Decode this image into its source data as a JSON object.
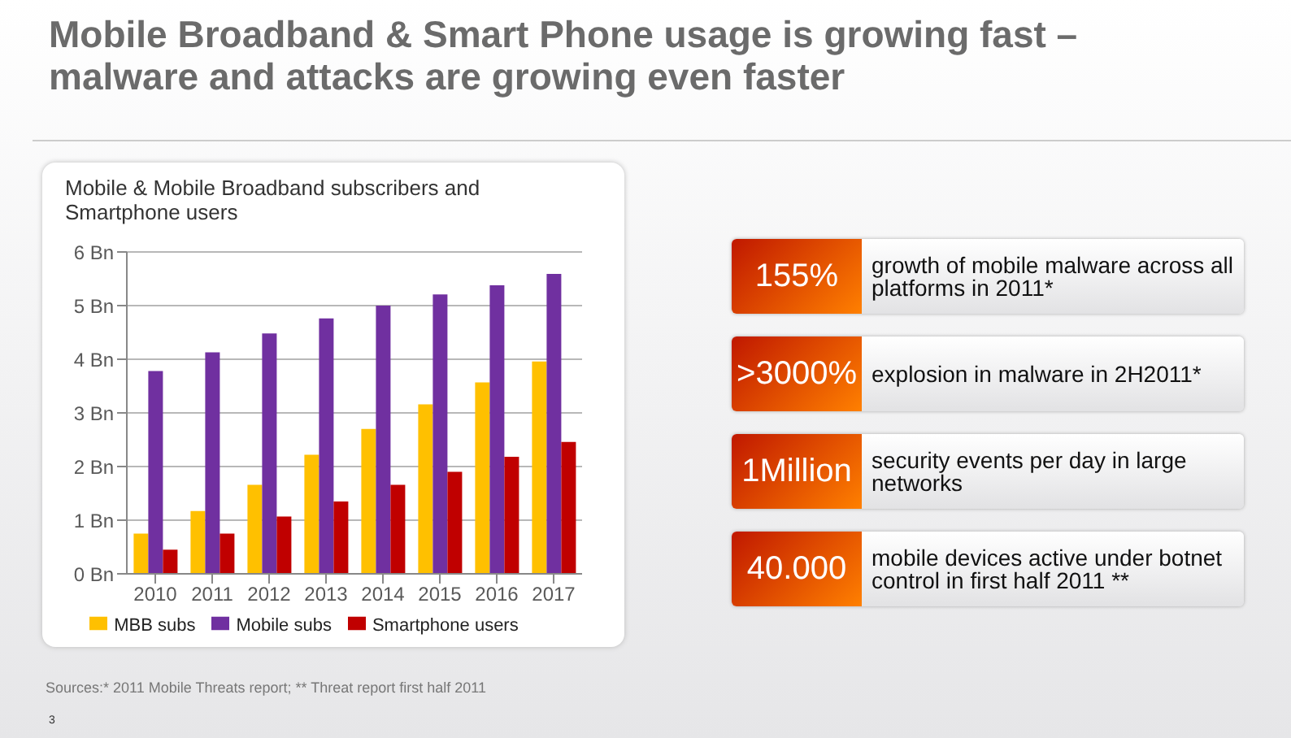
{
  "chart_data": {
    "type": "bar",
    "title": "Mobile Broadband & Smart Phone usage is growing fast – malware and attacks are growing even faster",
    "subtitle": "Mobile & Mobile Broadband subscribers and Smartphone users",
    "categories": [
      "2010",
      "2011",
      "2012",
      "2013",
      "2014",
      "2015",
      "2016",
      "2017"
    ],
    "series": [
      {
        "name": "MBB subs",
        "color": "#ffc000",
        "values": [
          0.75,
          1.17,
          1.66,
          2.22,
          2.7,
          3.16,
          3.57,
          3.96
        ]
      },
      {
        "name": "Mobile subs",
        "color": "#7030a0",
        "values": [
          3.78,
          4.13,
          4.48,
          4.76,
          5.0,
          5.21,
          5.38,
          5.59
        ]
      },
      {
        "name": "Smartphone users",
        "color": "#c00000",
        "values": [
          0.45,
          0.75,
          1.07,
          1.35,
          1.66,
          1.9,
          2.18,
          2.46
        ]
      }
    ],
    "ylim": [
      0,
      6
    ],
    "yticks": [
      {
        "value": 0,
        "label": "0 Bn"
      },
      {
        "value": 1,
        "label": "1 Bn"
      },
      {
        "value": 2,
        "label": "2 Bn"
      },
      {
        "value": 3,
        "label": "3 Bn"
      },
      {
        "value": 4,
        "label": "4 Bn"
      },
      {
        "value": 5,
        "label": "5 Bn"
      },
      {
        "value": 6,
        "label": "6 Bn"
      }
    ],
    "grid": "y",
    "legend": "bottom",
    "annotations": [
      "155%",
      "growth of mobile malware across all platforms in 2011*",
      ">3000%",
      "explosion in malware in 2H2011*",
      "1Million",
      "security events per day in large networks",
      "40.000",
      "mobile devices active under botnet control in first half 2011 **",
      "Sources:* 2011 Mobile Threats report; ** Threat report first half 2011",
      "3"
    ]
  }
}
